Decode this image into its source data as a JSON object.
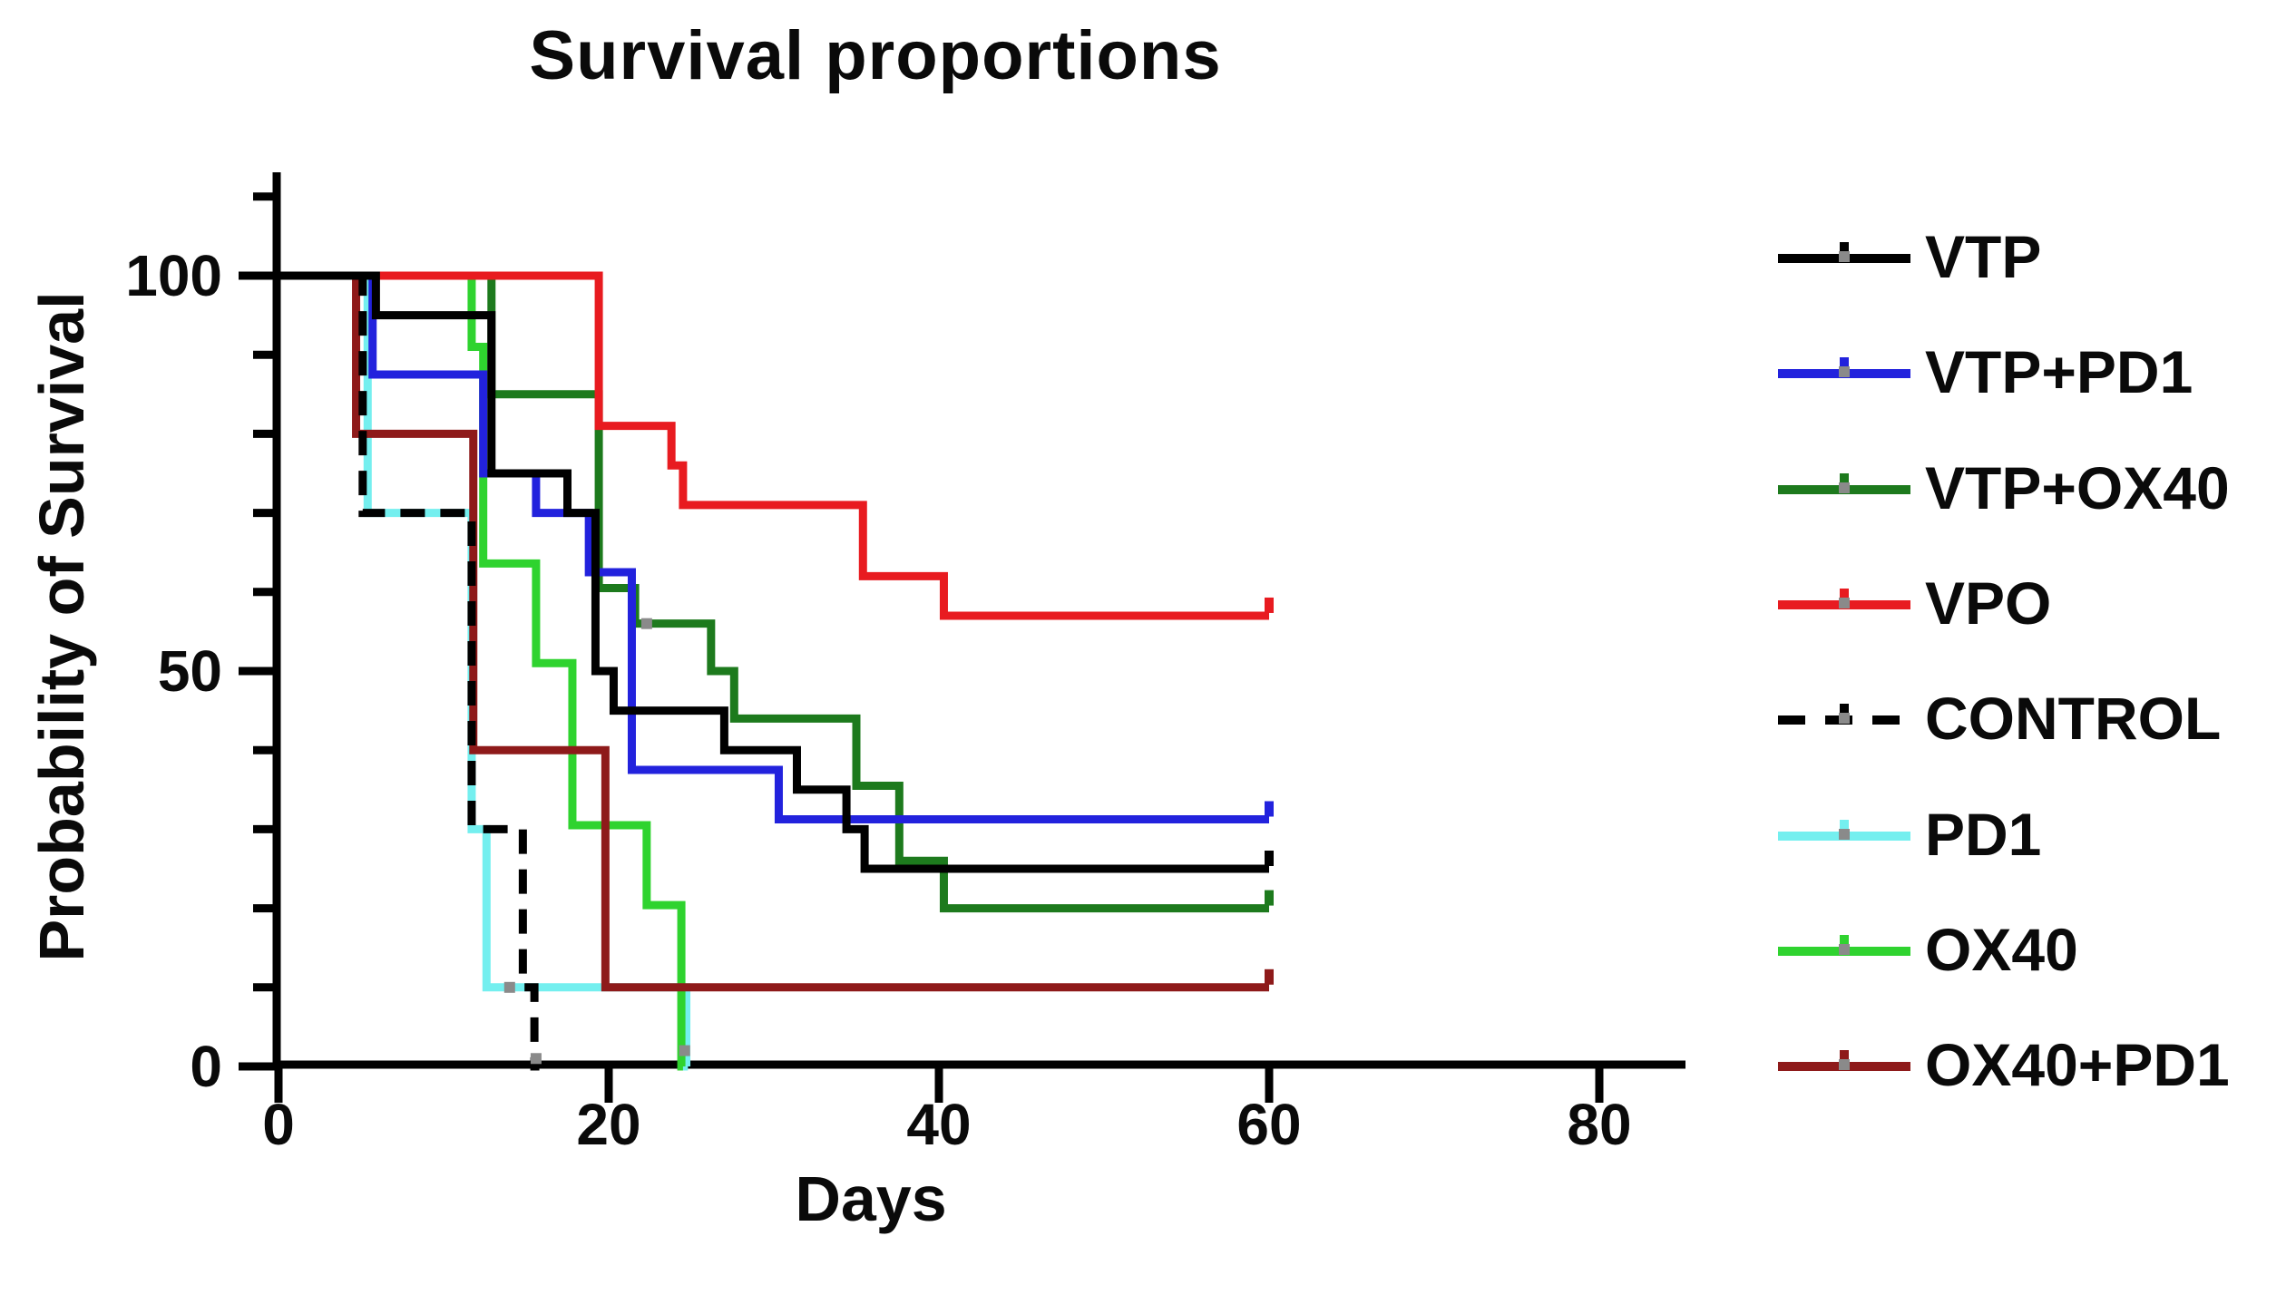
{
  "title": "Survival proportions",
  "axes": {
    "x": {
      "label": "Days",
      "major_ticks": [
        0,
        20,
        40,
        60,
        80
      ],
      "range": [
        0,
        85
      ]
    },
    "y": {
      "label": "Probability of Survival",
      "major_ticks": [
        0,
        50,
        100
      ],
      "minor_ticks": [
        10,
        20,
        30,
        40,
        60,
        70,
        80,
        90,
        110
      ],
      "range": [
        0,
        113
      ]
    }
  },
  "legend": {
    "items": [
      {
        "label": "VTP",
        "color": "#000000",
        "dashed": false
      },
      {
        "label": "VTP+PD1",
        "color": "#2222dd",
        "dashed": false
      },
      {
        "label": "VTP+OX40",
        "color": "#1d7a1d",
        "dashed": false
      },
      {
        "label": "VPO",
        "color": "#e81b20",
        "dashed": false
      },
      {
        "label": "CONTROL",
        "color": "#000000",
        "dashed": true
      },
      {
        "label": "PD1",
        "color": "#74efef",
        "dashed": false
      },
      {
        "label": "OX40",
        "color": "#2fd32f",
        "dashed": false
      },
      {
        "label": "OX40+PD1",
        "color": "#8e1a1a",
        "dashed": false
      }
    ]
  },
  "chart_data": {
    "type": "line",
    "subtype": "kaplan-meier-step",
    "title": "Survival proportions",
    "xlabel": "Days",
    "ylabel": "Probability of Survival",
    "xlim": [
      0,
      85
    ],
    "ylim": [
      0,
      113
    ],
    "grid": false,
    "legend_position": "right-outside",
    "series": [
      {
        "name": "PD1",
        "color": "#74efef",
        "dashed": false,
        "end_day": 24.8,
        "end_tick": false,
        "steps": [
          [
            5.4,
            70
          ],
          [
            11.7,
            30
          ],
          [
            12.6,
            10
          ],
          [
            24.7,
            0
          ]
        ]
      },
      {
        "name": "OX40",
        "color": "#2fd32f",
        "dashed": false,
        "end_day": 24.5,
        "end_tick": false,
        "steps": [
          [
            11.7,
            91
          ],
          [
            12.4,
            63.6
          ],
          [
            15.6,
            51
          ],
          [
            17.8,
            30.5
          ],
          [
            22.3,
            20.4
          ],
          [
            24.4,
            0
          ]
        ]
      },
      {
        "name": "VTP+OX40",
        "color": "#1d7a1d",
        "dashed": false,
        "end_day": 60,
        "end_tick": true,
        "steps": [
          [
            12.9,
            85
          ],
          [
            19.4,
            60.5
          ],
          [
            21.6,
            56
          ],
          [
            26.2,
            50
          ],
          [
            27.6,
            44
          ],
          [
            35.0,
            35.5
          ],
          [
            37.6,
            26
          ],
          [
            40.3,
            20
          ]
        ]
      },
      {
        "name": "OX40+PD1",
        "color": "#8e1a1a",
        "dashed": false,
        "end_day": 60,
        "end_tick": true,
        "steps": [
          [
            4.7,
            80
          ],
          [
            11.8,
            40
          ],
          [
            19.8,
            10
          ]
        ]
      },
      {
        "name": "VPO",
        "color": "#e81b20",
        "dashed": false,
        "end_day": 60,
        "end_tick": true,
        "steps": [
          [
            19.4,
            81
          ],
          [
            23.8,
            76
          ],
          [
            24.5,
            71
          ],
          [
            35.4,
            62
          ],
          [
            40.3,
            57
          ]
        ]
      },
      {
        "name": "VTP+PD1",
        "color": "#2222dd",
        "dashed": false,
        "end_day": 60,
        "end_tick": true,
        "steps": [
          [
            5.7,
            87.5
          ],
          [
            12.4,
            75
          ],
          [
            15.6,
            70
          ],
          [
            18.8,
            62.5
          ],
          [
            21.4,
            37.5
          ],
          [
            30.3,
            31.25
          ]
        ]
      },
      {
        "name": "VTP",
        "color": "#000000",
        "dashed": false,
        "end_day": 60,
        "end_tick": true,
        "steps": [
          [
            5.9,
            95
          ],
          [
            12.9,
            75
          ],
          [
            17.5,
            70
          ],
          [
            19.2,
            50
          ],
          [
            20.3,
            45
          ],
          [
            27.0,
            40
          ],
          [
            31.4,
            35
          ],
          [
            34.4,
            30
          ],
          [
            35.5,
            25
          ]
        ]
      },
      {
        "name": "CONTROL",
        "color": "#000000",
        "dashed": true,
        "end_day": 15.8,
        "end_tick": false,
        "steps": [
          [
            5.1,
            70
          ],
          [
            11.7,
            30
          ],
          [
            14.8,
            10
          ],
          [
            15.5,
            0
          ]
        ]
      }
    ],
    "censor_marks": [
      {
        "day": 14.0,
        "prob": 10,
        "note": "PD1 censored"
      },
      {
        "day": 22.3,
        "prob": 56,
        "note": "VTP+OX40 censored"
      },
      {
        "day": 15.6,
        "prob": 1,
        "note": "CONTROL reaches 0"
      },
      {
        "day": 24.6,
        "prob": 2,
        "note": "PD1 reaches 0"
      }
    ]
  }
}
